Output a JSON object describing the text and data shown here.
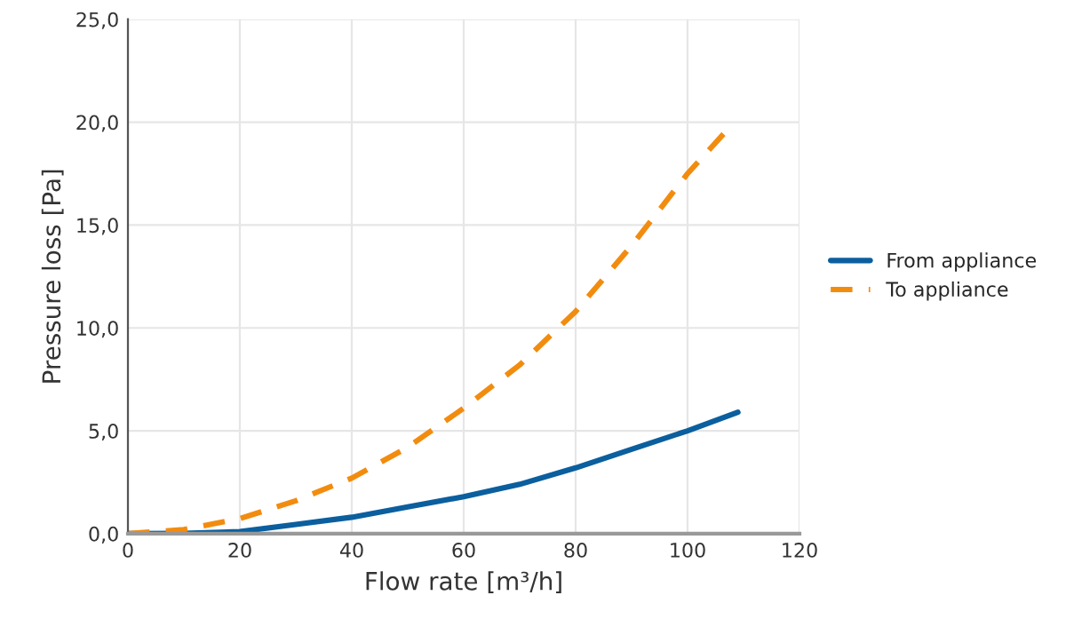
{
  "chart_data": {
    "type": "line",
    "xlabel": "Flow rate [m³/h]",
    "ylabel": "Pressure loss [Pa]",
    "xlim": [
      0,
      120
    ],
    "xticks": [
      0,
      20,
      40,
      60,
      80,
      100,
      120
    ],
    "ylim": [
      0,
      25
    ],
    "yticks": [
      {
        "value": 0,
        "label": "0,0"
      },
      {
        "value": 5,
        "label": "5,0"
      },
      {
        "value": 10,
        "label": "10,0"
      },
      {
        "value": 15,
        "label": "15,0"
      },
      {
        "value": 20,
        "label": "20,0"
      },
      {
        "value": 25,
        "label": "25,0"
      }
    ],
    "grid": true,
    "legend": "right",
    "series": [
      {
        "name": "From appliance",
        "color": "#0b5f9e",
        "line_style": "solid",
        "x": [
          0,
          10,
          20,
          30,
          40,
          50,
          60,
          70,
          80,
          90,
          100,
          109
        ],
        "values": [
          0,
          0.02,
          0.1,
          0.45,
          0.8,
          1.3,
          1.8,
          2.4,
          3.2,
          4.1,
          5.0,
          5.9
        ]
      },
      {
        "name": "To appliance",
        "color": "#f28c0f",
        "line_style": "dashed",
        "x": [
          0,
          10,
          20,
          30,
          40,
          50,
          60,
          70,
          80,
          90,
          100,
          107
        ],
        "values": [
          0,
          0.2,
          0.73,
          1.6,
          2.7,
          4.2,
          6.1,
          8.2,
          10.8,
          14.0,
          17.5,
          19.6
        ]
      }
    ]
  }
}
